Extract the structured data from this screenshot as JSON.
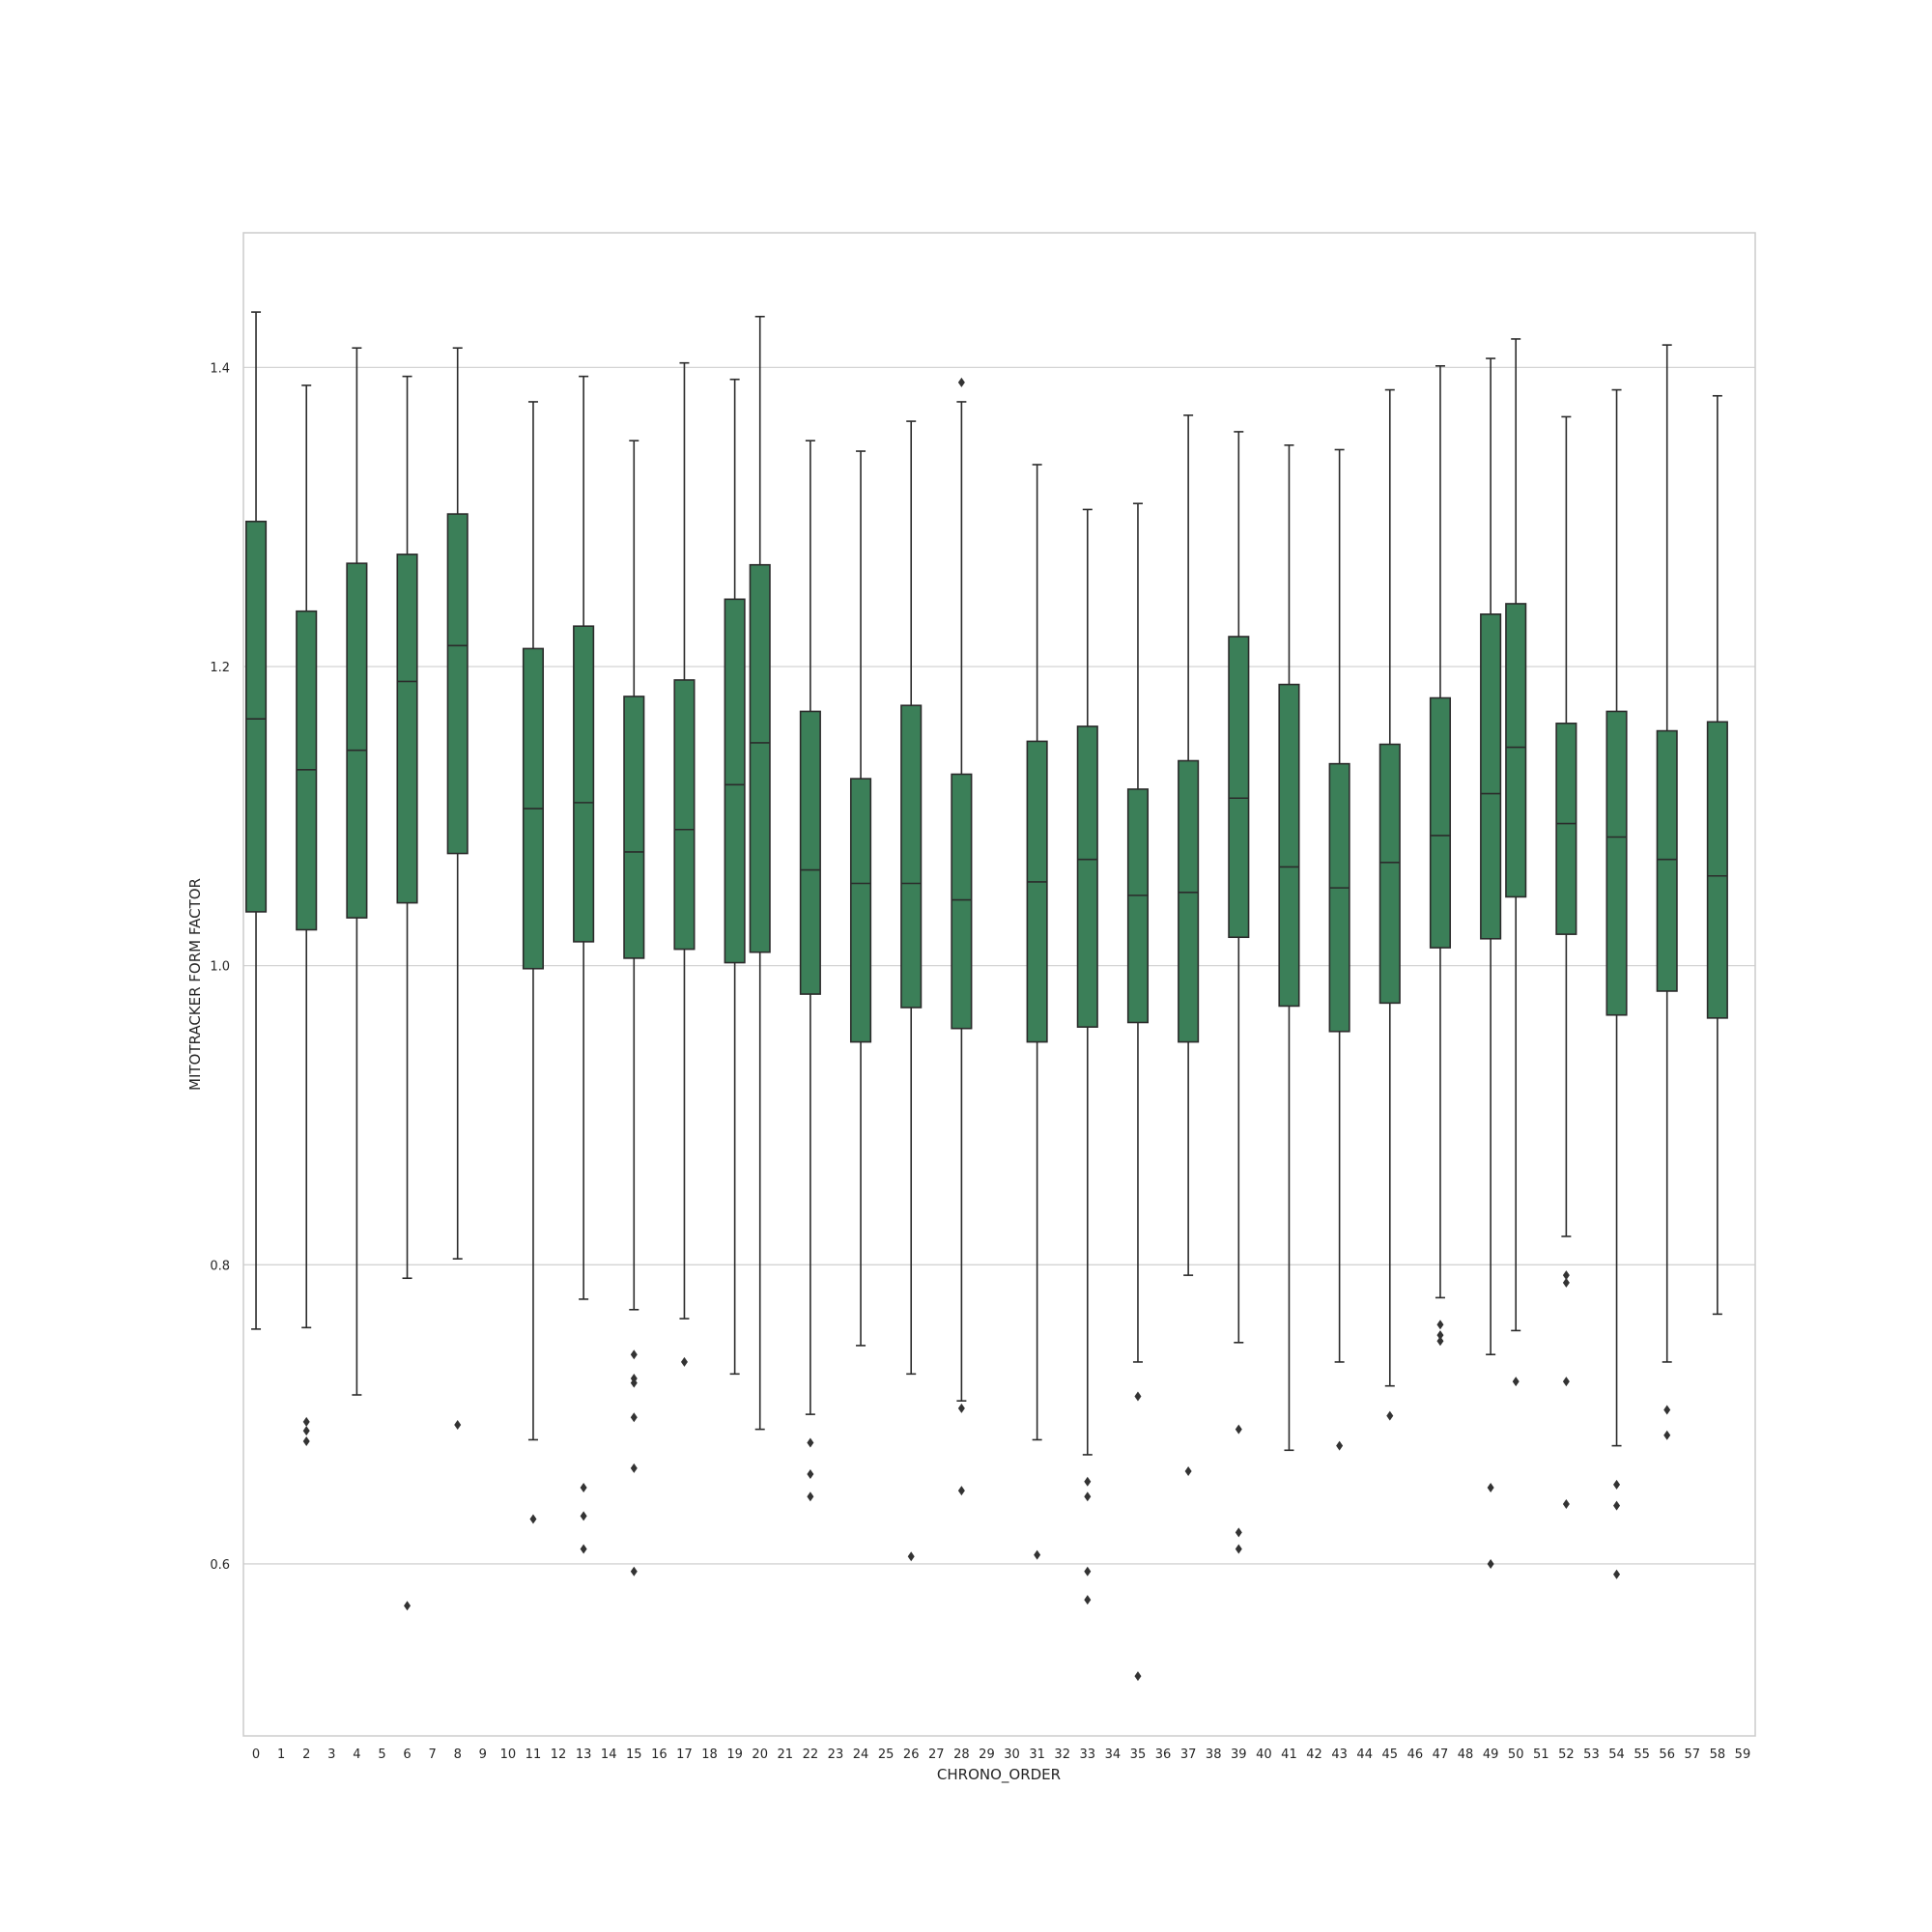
{
  "chart_data": {
    "type": "box",
    "title": "",
    "xlabel": "CHRONO_ORDER",
    "ylabel": "MITOTRACKER FORM FACTOR",
    "ylim": [
      0.485,
      1.49
    ],
    "yticks": [
      "0.6",
      "0.8",
      "1.0",
      "1.2",
      "1.4"
    ],
    "ytick_values": [
      0.6,
      0.8,
      1.0,
      1.2,
      1.4
    ],
    "grid": "horizontal",
    "box_color": "#3b7f58",
    "line_color": "#2b2b2b",
    "categories": [
      "0",
      "1",
      "2",
      "3",
      "4",
      "5",
      "6",
      "7",
      "8",
      "9",
      "10",
      "11",
      "12",
      "13",
      "14",
      "15",
      "16",
      "17",
      "18",
      "19",
      "20",
      "21",
      "22",
      "23",
      "24",
      "25",
      "26",
      "27",
      "28",
      "29",
      "30",
      "31",
      "32",
      "33",
      "34",
      "35",
      "36",
      "37",
      "38",
      "39",
      "40",
      "41",
      "42",
      "43",
      "44",
      "45",
      "46",
      "47",
      "48",
      "49",
      "50",
      "51",
      "52",
      "53",
      "54",
      "55",
      "56",
      "57",
      "58",
      "59"
    ],
    "boxes": [
      {
        "category": "0",
        "whisker_low": 0.757,
        "q1": 1.036,
        "median": 1.165,
        "q3": 1.297,
        "whisker_high": 1.437,
        "outliers": []
      },
      {
        "category": "2",
        "whisker_low": 0.758,
        "q1": 1.024,
        "median": 1.131,
        "q3": 1.237,
        "whisker_high": 1.388,
        "outliers": [
          0.695,
          0.689,
          0.682
        ]
      },
      {
        "category": "4",
        "whisker_low": 0.713,
        "q1": 1.032,
        "median": 1.144,
        "q3": 1.269,
        "whisker_high": 1.413,
        "outliers": []
      },
      {
        "category": "6",
        "whisker_low": 0.791,
        "q1": 1.042,
        "median": 1.19,
        "q3": 1.275,
        "whisker_high": 1.394,
        "outliers": [
          0.572
        ]
      },
      {
        "category": "8",
        "whisker_low": 0.804,
        "q1": 1.075,
        "median": 1.214,
        "q3": 1.302,
        "whisker_high": 1.413,
        "outliers": [
          0.693
        ]
      },
      {
        "category": "11",
        "whisker_low": 0.683,
        "q1": 0.998,
        "median": 1.105,
        "q3": 1.212,
        "whisker_high": 1.377,
        "outliers": [
          0.63
        ]
      },
      {
        "category": "13",
        "whisker_low": 0.777,
        "q1": 1.016,
        "median": 1.109,
        "q3": 1.227,
        "whisker_high": 1.394,
        "outliers": [
          0.651,
          0.632,
          0.61
        ]
      },
      {
        "category": "15",
        "whisker_low": 0.77,
        "q1": 1.005,
        "median": 1.076,
        "q3": 1.18,
        "whisker_high": 1.351,
        "outliers": [
          0.74,
          0.724,
          0.721,
          0.698,
          0.664,
          0.595
        ]
      },
      {
        "category": "17",
        "whisker_low": 0.764,
        "q1": 1.011,
        "median": 1.091,
        "q3": 1.191,
        "whisker_high": 1.403,
        "outliers": [
          0.735
        ]
      },
      {
        "category": "19",
        "whisker_low": 0.727,
        "q1": 1.002,
        "median": 1.121,
        "q3": 1.245,
        "whisker_high": 1.392,
        "outliers": []
      },
      {
        "category": "20",
        "whisker_low": 0.69,
        "q1": 1.009,
        "median": 1.149,
        "q3": 1.268,
        "whisker_high": 1.434,
        "outliers": []
      },
      {
        "category": "22",
        "whisker_low": 0.7,
        "q1": 0.981,
        "median": 1.064,
        "q3": 1.17,
        "whisker_high": 1.351,
        "outliers": [
          0.681,
          0.66,
          0.645
        ]
      },
      {
        "category": "24",
        "whisker_low": 0.746,
        "q1": 0.949,
        "median": 1.055,
        "q3": 1.125,
        "whisker_high": 1.344,
        "outliers": []
      },
      {
        "category": "26",
        "whisker_low": 0.727,
        "q1": 0.972,
        "median": 1.055,
        "q3": 1.174,
        "whisker_high": 1.364,
        "outliers": [
          0.605
        ]
      },
      {
        "category": "28",
        "whisker_low": 0.709,
        "q1": 0.958,
        "median": 1.044,
        "q3": 1.128,
        "whisker_high": 1.377,
        "outliers": [
          1.39,
          0.704,
          0.649
        ]
      },
      {
        "category": "31",
        "whisker_low": 0.683,
        "q1": 0.949,
        "median": 1.056,
        "q3": 1.15,
        "whisker_high": 1.335,
        "outliers": [
          0.606
        ]
      },
      {
        "category": "33",
        "whisker_low": 0.673,
        "q1": 0.959,
        "median": 1.071,
        "q3": 1.16,
        "whisker_high": 1.305,
        "outliers": [
          0.655,
          0.645,
          0.595,
          0.576
        ]
      },
      {
        "category": "35",
        "whisker_low": 0.735,
        "q1": 0.962,
        "median": 1.047,
        "q3": 1.118,
        "whisker_high": 1.309,
        "outliers": [
          0.712,
          0.525
        ]
      },
      {
        "category": "37",
        "whisker_low": 0.793,
        "q1": 0.949,
        "median": 1.049,
        "q3": 1.137,
        "whisker_high": 1.368,
        "outliers": [
          0.662
        ]
      },
      {
        "category": "39",
        "whisker_low": 0.748,
        "q1": 1.019,
        "median": 1.112,
        "q3": 1.22,
        "whisker_high": 1.357,
        "outliers": [
          0.69,
          0.621,
          0.61
        ]
      },
      {
        "category": "41",
        "whisker_low": 0.676,
        "q1": 0.973,
        "median": 1.066,
        "q3": 1.188,
        "whisker_high": 1.348,
        "outliers": []
      },
      {
        "category": "43",
        "whisker_low": 0.735,
        "q1": 0.956,
        "median": 1.052,
        "q3": 1.135,
        "whisker_high": 1.345,
        "outliers": [
          0.679
        ]
      },
      {
        "category": "45",
        "whisker_low": 0.719,
        "q1": 0.975,
        "median": 1.069,
        "q3": 1.148,
        "whisker_high": 1.385,
        "outliers": [
          0.699
        ]
      },
      {
        "category": "47",
        "whisker_low": 0.778,
        "q1": 1.012,
        "median": 1.087,
        "q3": 1.179,
        "whisker_high": 1.401,
        "outliers": [
          0.76,
          0.753,
          0.749
        ]
      },
      {
        "category": "49",
        "whisker_low": 0.74,
        "q1": 1.018,
        "median": 1.115,
        "q3": 1.235,
        "whisker_high": 1.406,
        "outliers": [
          0.651,
          0.6
        ]
      },
      {
        "category": "50",
        "whisker_low": 0.756,
        "q1": 1.046,
        "median": 1.146,
        "q3": 1.242,
        "whisker_high": 1.419,
        "outliers": [
          0.722
        ]
      },
      {
        "category": "52",
        "whisker_low": 0.819,
        "q1": 1.021,
        "median": 1.095,
        "q3": 1.162,
        "whisker_high": 1.367,
        "outliers": [
          0.793,
          0.788,
          0.722,
          0.64
        ]
      },
      {
        "category": "54",
        "whisker_low": 0.679,
        "q1": 0.967,
        "median": 1.086,
        "q3": 1.17,
        "whisker_high": 1.385,
        "outliers": [
          0.653,
          0.639,
          0.593
        ]
      },
      {
        "category": "56",
        "whisker_low": 0.735,
        "q1": 0.983,
        "median": 1.071,
        "q3": 1.157,
        "whisker_high": 1.415,
        "outliers": [
          0.703,
          0.686
        ]
      },
      {
        "category": "58",
        "whisker_low": 0.767,
        "q1": 0.965,
        "median": 1.06,
        "q3": 1.163,
        "whisker_high": 1.381,
        "outliers": []
      }
    ]
  }
}
